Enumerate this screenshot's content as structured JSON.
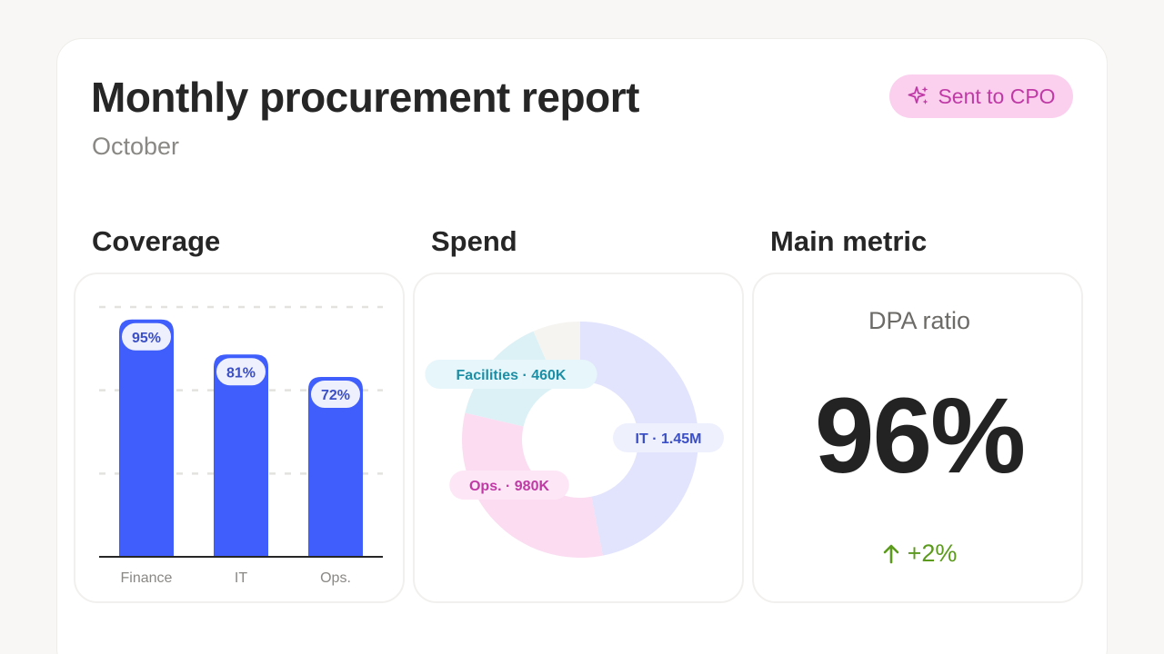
{
  "header": {
    "title": "Monthly procurement report",
    "subtitle": "October",
    "badge": {
      "label": "Sent to CPO",
      "icon": "sparkles-icon",
      "bg": "#fbd0ef",
      "color": "#c03aa6"
    }
  },
  "sections": {
    "coverage_title": "Coverage",
    "spend_title": "Spend",
    "metric_title": "Main metric"
  },
  "metric": {
    "label": "DPA ratio",
    "value": "96%",
    "delta": "+2%",
    "delta_icon": "arrow-up-icon",
    "delta_color": "#5b9a1c"
  },
  "chart_data": [
    {
      "type": "bar",
      "categories": [
        "Finance",
        "IT",
        "Ops."
      ],
      "values": [
        95,
        81,
        72
      ],
      "data_labels": [
        "95%",
        "81%",
        "72%"
      ],
      "ylim": [
        0,
        100
      ],
      "grid": true,
      "bar_color": "#3f5efb"
    },
    {
      "type": "pie",
      "donut": true,
      "categories": [
        "IT",
        "Ops.",
        "Facilities",
        ""
      ],
      "values": [
        1450000,
        980000,
        460000,
        200000
      ],
      "data_labels": [
        "IT · 1.45M",
        "Ops. · 980K",
        "Facilities · 460K",
        ""
      ],
      "colors": [
        "#e2e4fd",
        "#fbdcf1",
        "#dcf1f6",
        "#f6f4f1"
      ],
      "label_colors": [
        "#3b4fc6",
        "#c03aa6",
        "#1c8fa6",
        ""
      ],
      "label_bg": [
        "#eef0fe",
        "#fde7f6",
        "#e6f6fa",
        ""
      ]
    }
  ]
}
